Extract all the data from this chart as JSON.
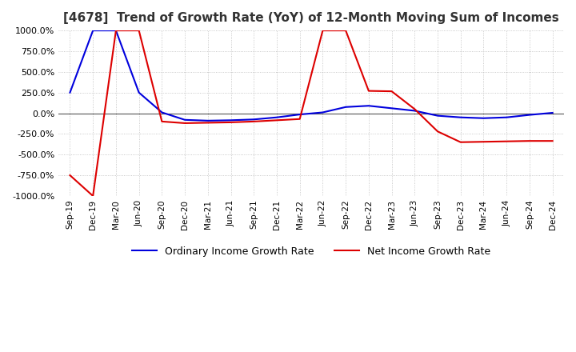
{
  "title": "[4678]  Trend of Growth Rate (YoY) of 12-Month Moving Sum of Incomes",
  "title_fontsize": 11,
  "ylim": [
    -1000,
    1000
  ],
  "yticks": [
    -1000,
    -750,
    -500,
    -250,
    0,
    250,
    500,
    750,
    1000
  ],
  "background_color": "#ffffff",
  "plot_bg_color": "#ffffff",
  "grid_color": "#bbbbbb",
  "ordinary_color": "#0000dd",
  "net_color": "#dd0000",
  "legend_labels": [
    "Ordinary Income Growth Rate",
    "Net Income Growth Rate"
  ],
  "x_labels": [
    "Sep-19",
    "Dec-19",
    "Mar-20",
    "Jun-20",
    "Sep-20",
    "Dec-20",
    "Mar-21",
    "Jun-21",
    "Sep-21",
    "Dec-21",
    "Mar-22",
    "Jun-22",
    "Sep-22",
    "Dec-22",
    "Mar-23",
    "Jun-23",
    "Sep-23",
    "Dec-23",
    "Mar-24",
    "Jun-24",
    "Sep-24",
    "Dec-24"
  ],
  "ordinary_data_y": [
    250,
    1000,
    1000,
    250,
    10,
    -80,
    -90,
    -85,
    -75,
    -50,
    -15,
    10,
    75,
    90,
    60,
    30,
    -30,
    -50,
    -60,
    -50,
    -20,
    5
  ],
  "net_data_y": [
    -750,
    -1000,
    1000,
    1000,
    -100,
    -120,
    -115,
    -110,
    -100,
    -85,
    -70,
    1000,
    1000,
    270,
    265,
    50,
    -220,
    -350,
    -345,
    -340,
    -335,
    -335
  ]
}
